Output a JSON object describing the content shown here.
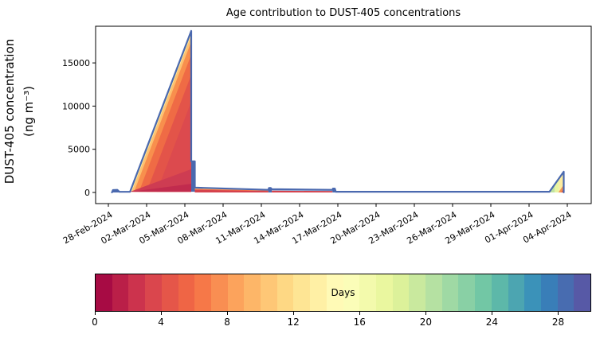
{
  "chart_data": {
    "type": "stacked_area",
    "title": "Age contribution to DUST-405 concentrations",
    "ylabel_line1": "DUST-405 concentration",
    "ylabel_line2": "(ng m⁻³)",
    "yticks": [
      0,
      5000,
      10000,
      15000
    ],
    "ylim": [
      -1300,
      19250
    ],
    "xtick_labels": [
      "28-Feb-2024",
      "02-Mar-2024",
      "05-Mar-2024",
      "08-Mar-2024",
      "11-Mar-2024",
      "14-Mar-2024",
      "17-Mar-2024",
      "20-Mar-2024",
      "23-Mar-2024",
      "26-Mar-2024",
      "29-Mar-2024",
      "01-Apr-2024",
      "04-Apr-2024"
    ],
    "xtick_interval_days": 3,
    "xlim_days": [
      -1.0,
      37.9
    ],
    "grid": false,
    "total_line_color": "#4a69af",
    "total_line_points": [
      [
        0.28,
        10
      ],
      [
        0.36,
        280
      ],
      [
        0.7,
        300
      ],
      [
        0.86,
        70
      ],
      [
        1.7,
        80
      ],
      [
        6.5,
        18700
      ],
      [
        6.5,
        3600
      ],
      [
        6.78,
        3600
      ],
      [
        6.78,
        560
      ],
      [
        12.55,
        300
      ],
      [
        12.6,
        520
      ],
      [
        12.74,
        520
      ],
      [
        12.82,
        380
      ],
      [
        17.58,
        300
      ],
      [
        17.62,
        450
      ],
      [
        17.76,
        450
      ],
      [
        17.84,
        80
      ],
      [
        34.6,
        80
      ],
      [
        35.72,
        2400
      ],
      [
        35.72,
        10
      ]
    ],
    "peak_events": [
      {
        "date": "05-Mar-2024",
        "peak_value_ng_m3": 18700,
        "dominant_age_days": "0-4"
      },
      {
        "date": "06-Mar-2024",
        "peak_value_ng_m3": 3600,
        "dominant_age_days": "0-2"
      },
      {
        "date": "04-Apr-2024",
        "peak_value_ng_m3": 2400,
        "dominant_age_days": "8-16"
      }
    ],
    "layers": [
      {
        "name": "peak-band-age10",
        "fill": "#fee79c",
        "points": [
          [
            1.7,
            80
          ],
          [
            6.5,
            18700
          ],
          [
            6.5,
            80
          ]
        ]
      },
      {
        "name": "peak-band-age8",
        "fill": "#fdc170",
        "points": [
          [
            1.83,
            80
          ],
          [
            6.5,
            18190
          ],
          [
            6.5,
            80
          ]
        ]
      },
      {
        "name": "peak-band-age6",
        "fill": "#f88f4d",
        "points": [
          [
            2.02,
            80
          ],
          [
            6.5,
            17450
          ],
          [
            6.5,
            80
          ]
        ]
      },
      {
        "name": "peak-band-age4",
        "fill": "#ef6b45",
        "points": [
          [
            2.4,
            80
          ],
          [
            6.5,
            15970
          ],
          [
            6.5,
            80
          ]
        ]
      },
      {
        "name": "peak-band-age3",
        "fill": "#e35449",
        "points": [
          [
            3.0,
            80
          ],
          [
            6.5,
            13630
          ],
          [
            6.5,
            80
          ]
        ]
      },
      {
        "name": "peak-band-age2",
        "fill": "#dc4a4e",
        "points": [
          [
            3.8,
            80
          ],
          [
            6.5,
            10520
          ],
          [
            6.5,
            80
          ]
        ]
      },
      {
        "name": "peak-band-age1",
        "fill": "#ce3c52",
        "points": [
          [
            1.7,
            80
          ],
          [
            6.5,
            2700
          ],
          [
            6.5,
            80
          ]
        ]
      },
      {
        "name": "peak-band-age0",
        "fill": "#c12b4e",
        "points": [
          [
            1.7,
            80
          ],
          [
            6.5,
            1000
          ],
          [
            6.5,
            80
          ]
        ]
      },
      {
        "name": "spike-column",
        "fill": "#4a69af",
        "points": [
          [
            6.5,
            80
          ],
          [
            6.5,
            3600
          ],
          [
            6.78,
            3600
          ],
          [
            6.78,
            80
          ]
        ]
      },
      {
        "name": "decay-strip-old",
        "fill": "#fee08b",
        "points": [
          [
            6.78,
            560
          ],
          [
            12.55,
            300
          ],
          [
            12.55,
            0
          ],
          [
            6.78,
            0
          ]
        ]
      },
      {
        "name": "decay-strip-mid",
        "fill": "#f4744a",
        "points": [
          [
            6.78,
            410
          ],
          [
            12.55,
            220
          ],
          [
            12.55,
            0
          ],
          [
            6.78,
            0
          ]
        ]
      },
      {
        "name": "decay-strip-young",
        "fill": "#d5424d",
        "points": [
          [
            6.78,
            300
          ],
          [
            12.55,
            160
          ],
          [
            12.55,
            0
          ],
          [
            6.78,
            0
          ]
        ]
      },
      {
        "name": "bump-12mar",
        "fill": "#4a69af",
        "points": [
          [
            12.55,
            300
          ],
          [
            12.6,
            520
          ],
          [
            12.74,
            520
          ],
          [
            12.82,
            380
          ],
          [
            12.82,
            0
          ],
          [
            12.55,
            0
          ]
        ]
      },
      {
        "name": "aged-strip-blue",
        "fill": "#aac2dd",
        "points": [
          [
            12.82,
            380
          ],
          [
            17.58,
            300
          ],
          [
            17.58,
            0
          ],
          [
            12.82,
            0
          ]
        ]
      },
      {
        "name": "aged-strip-red",
        "fill": "#d5424d",
        "points": [
          [
            12.82,
            200
          ],
          [
            17.58,
            160
          ],
          [
            17.58,
            0
          ],
          [
            12.82,
            0
          ]
        ]
      },
      {
        "name": "bump-17mar",
        "fill": "#4a69af",
        "points": [
          [
            17.58,
            300
          ],
          [
            17.62,
            450
          ],
          [
            17.76,
            450
          ],
          [
            17.84,
            80
          ],
          [
            17.84,
            0
          ],
          [
            17.58,
            0
          ]
        ]
      },
      {
        "name": "start-bump",
        "fill": "#4a69af",
        "points": [
          [
            0.28,
            0
          ],
          [
            0.36,
            280
          ],
          [
            0.7,
            300
          ],
          [
            0.86,
            70
          ],
          [
            0.86,
            0
          ]
        ]
      },
      {
        "name": "april-peak-green",
        "fill": "#bfe3a0",
        "points": [
          [
            34.6,
            80
          ],
          [
            35.02,
            900
          ],
          [
            35.02,
            0
          ],
          [
            34.6,
            0
          ]
        ]
      },
      {
        "name": "april-peak-yellowgreen",
        "fill": "#e9f4a1",
        "points": [
          [
            35.02,
            900
          ],
          [
            35.36,
            1640
          ],
          [
            35.36,
            0
          ],
          [
            35.02,
            0
          ]
        ]
      },
      {
        "name": "april-peak-yellow",
        "fill": "#fdec9e",
        "points": [
          [
            35.36,
            1640
          ],
          [
            35.72,
            2400
          ],
          [
            35.72,
            0
          ],
          [
            35.36,
            0
          ]
        ]
      },
      {
        "name": "april-peak-orange",
        "fill": "#f5914f",
        "points": [
          [
            35.3,
            0
          ],
          [
            35.72,
            880
          ],
          [
            35.72,
            0
          ]
        ]
      },
      {
        "name": "april-peak-red",
        "fill": "#e25649",
        "points": [
          [
            35.52,
            0
          ],
          [
            35.72,
            430
          ],
          [
            35.72,
            0
          ]
        ]
      }
    ],
    "colorbar": {
      "label": "Days",
      "min": 0,
      "max": 30,
      "ticks": [
        0,
        4,
        8,
        12,
        16,
        20,
        24,
        28
      ],
      "colormap": "Spectral",
      "colors": [
        "#a70b44",
        "#ba1f48",
        "#cc334d",
        "#da464d",
        "#e55649",
        "#ef6545",
        "#f67848",
        "#f98e52",
        "#fca35c",
        "#fdb668",
        "#fec776",
        "#fed884",
        "#fee594",
        "#fff0a5",
        "#fffab6",
        "#fbfdb8",
        "#f3faac",
        "#eaf79f",
        "#dcf19a",
        "#c9e99e",
        "#b5e1a2",
        "#9fd9a4",
        "#89d0a5",
        "#72c7a5",
        "#5db8a9",
        "#4ca5b1",
        "#3b92b9",
        "#397eb8",
        "#486cb0",
        "#5759a6"
      ]
    }
  }
}
